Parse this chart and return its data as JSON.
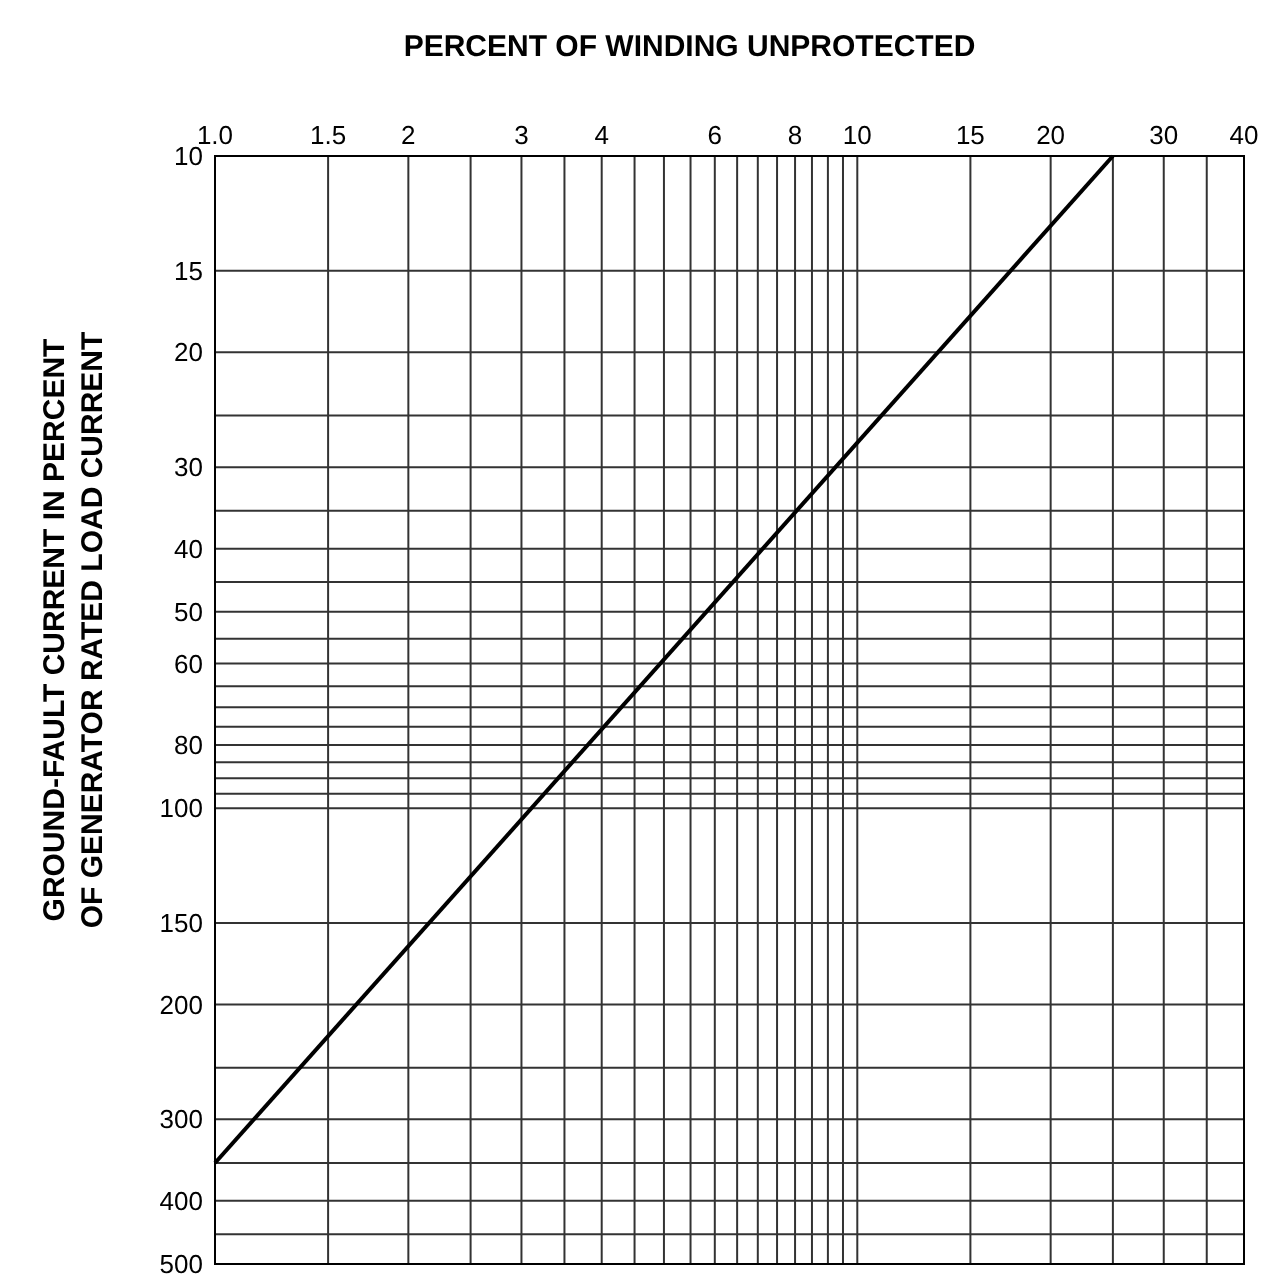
{
  "chart_data": {
    "type": "line",
    "xlabel": "PERCENT OF WINDING UNPROTECTED",
    "ylabel": "GROUND-FAULT CURRENT IN PERCENT\nOF GENERATOR RATED LOAD CURRENT",
    "log": "xy",
    "grid": true,
    "xlim": [
      1,
      40
    ],
    "ylim": [
      500,
      10
    ],
    "xticks": [
      {
        "value": 1,
        "label": "1.0"
      },
      1.5,
      2,
      {
        "value": 2.5,
        "label": null
      },
      3,
      {
        "value": 3.5,
        "label": null
      },
      4,
      {
        "value": 4.5,
        "label": null
      },
      {
        "value": 5,
        "label": null
      },
      {
        "value": 5.5,
        "label": null
      },
      6,
      {
        "value": 6.5,
        "label": null
      },
      {
        "value": 7,
        "label": null
      },
      {
        "value": 7.5,
        "label": null
      },
      8,
      {
        "value": 8.5,
        "label": null
      },
      {
        "value": 9,
        "label": null
      },
      {
        "value": 9.5,
        "label": null
      },
      10,
      15,
      20,
      {
        "value": 25,
        "label": null
      },
      30,
      {
        "value": 35,
        "label": null
      },
      40
    ],
    "yticks": [
      10,
      15,
      20,
      {
        "value": 25,
        "label": null
      },
      30,
      {
        "value": 35,
        "label": null
      },
      40,
      {
        "value": 45,
        "label": null
      },
      50,
      {
        "value": 55,
        "label": null
      },
      60,
      {
        "value": 65,
        "label": null
      },
      {
        "value": 70,
        "label": null
      },
      {
        "value": 75,
        "label": null
      },
      80,
      {
        "value": 85,
        "label": null
      },
      {
        "value": 90,
        "label": null
      },
      {
        "value": 95,
        "label": null
      },
      100,
      150,
      200,
      {
        "value": 250,
        "label": null
      },
      300,
      {
        "value": 350,
        "label": null
      },
      400,
      {
        "value": 450,
        "label": null
      },
      500
    ],
    "series": [
      {
        "color": "#000000",
        "x": [
          1,
          25
        ],
        "values": [
          350,
          10
        ]
      }
    ]
  }
}
